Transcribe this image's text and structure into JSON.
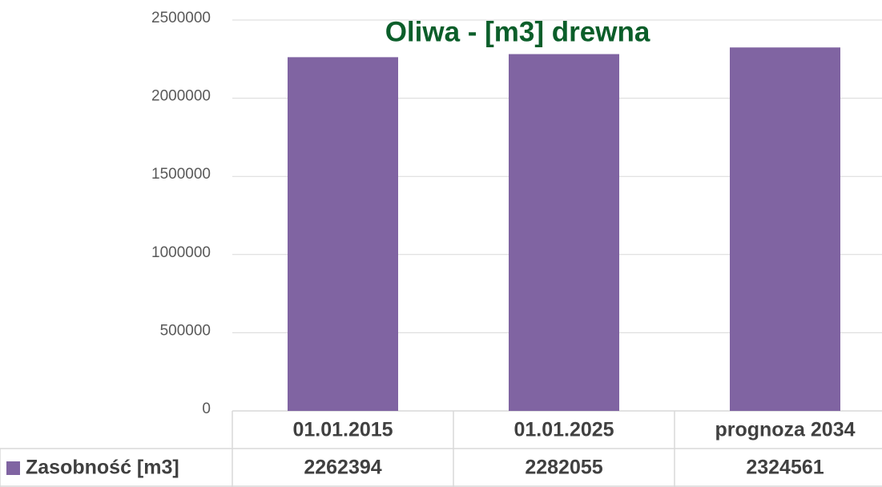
{
  "chart_data": {
    "type": "bar",
    "title": "Oliwa - [m3] drewna",
    "categories": [
      "01.01.2015",
      "01.01.2025",
      "prognoza 2034"
    ],
    "series": [
      {
        "name": "Zasobność [m3]",
        "color": "#8064a2",
        "values": [
          2262394,
          2282055,
          2324561
        ]
      }
    ],
    "ylim": [
      0,
      2500000
    ],
    "yticks": [
      0,
      500000,
      1000000,
      1500000,
      2000000,
      2500000
    ],
    "grid": true,
    "data_table": true
  }
}
